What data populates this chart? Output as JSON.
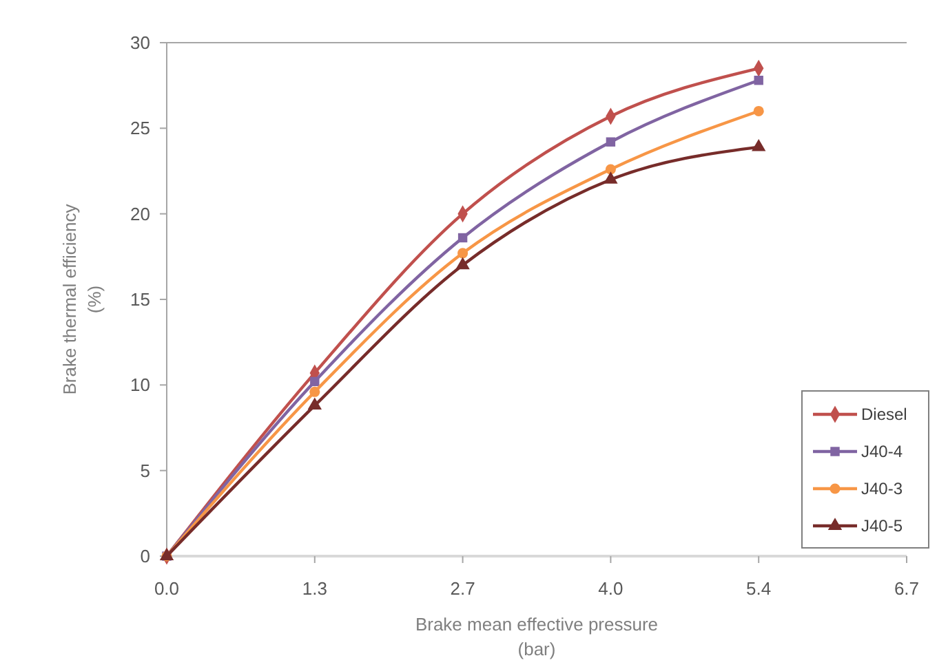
{
  "chart_data": {
    "type": "line",
    "xlabel": "Brake mean effective pressure\n(bar)",
    "ylabel": "Brake thermal efficiency\n(%)",
    "x": [
      0,
      1.34,
      2.68,
      4.02,
      5.36
    ],
    "series": [
      {
        "name": "Diesel",
        "color": "#c0504d",
        "marker": "diamond",
        "values": [
          0,
          10.7,
          20.0,
          25.7,
          28.5
        ]
      },
      {
        "name": "J40-4",
        "color": "#8064a2",
        "marker": "square",
        "values": [
          0,
          10.2,
          18.6,
          24.2,
          27.8
        ]
      },
      {
        "name": "J40-3",
        "color": "#f79646",
        "marker": "circle",
        "values": [
          0,
          9.6,
          17.7,
          22.6,
          26.0
        ]
      },
      {
        "name": "J40-5",
        "color": "#772c2a",
        "marker": "triangle",
        "values": [
          0,
          8.8,
          17.0,
          22.0,
          23.9
        ]
      }
    ],
    "xlim": [
      0,
      6.7
    ],
    "xticks": [
      {
        "value": 0,
        "label": "0.0"
      },
      {
        "value": 1.34,
        "label": "1.3"
      },
      {
        "value": 2.68,
        "label": "2.7"
      },
      {
        "value": 4.02,
        "label": "4.0"
      },
      {
        "value": 5.36,
        "label": "5.4"
      },
      {
        "value": 6.7,
        "label": "6.7"
      }
    ],
    "ylim": [
      0,
      30
    ],
    "yticks": [
      0,
      5,
      10,
      15,
      20,
      25,
      30
    ],
    "grid": false,
    "legend": "bottom right"
  }
}
